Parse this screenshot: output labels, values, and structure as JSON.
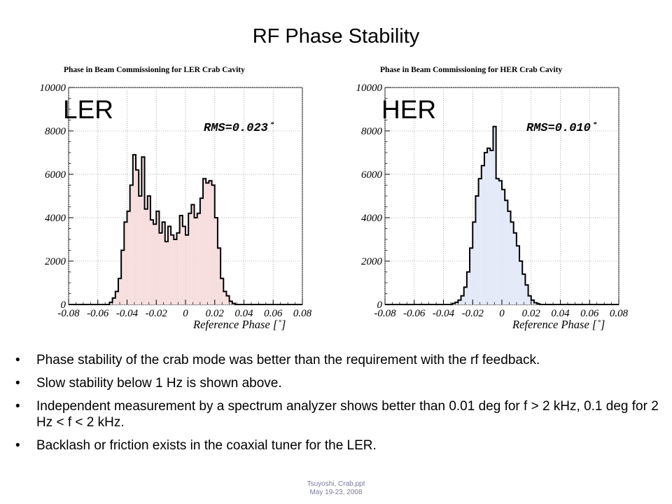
{
  "slide": {
    "title": "RF Phase Stability",
    "bullets": [
      "Phase stability of the crab mode was better than the requirement with the rf feedback.",
      "Slow stability below 1 Hz is shown above.",
      "Independent measurement by a spectrum analyzer shows better than 0.01 deg for f > 2 kHz, 0.1 deg for 2 Hz < f < 2 kHz.",
      "Backlash or friction exists in the coaxial tuner for the LER."
    ],
    "footer": [
      "Tsuyoshi, Crab.ppt",
      "May 19-23, 2008"
    ]
  },
  "chart_data": [
    {
      "id": "ler",
      "type": "histogram",
      "title": "Phase in Beam Commissioning for LER Crab Cavity",
      "overlay_label": "LER",
      "annotation": "RMS=0.023˚",
      "xlabel": "Reference Phase [˚]",
      "ylabel": "",
      "xlim": [
        -0.08,
        0.08
      ],
      "ylim": [
        0,
        10000
      ],
      "x_ticks": [
        "-0.08",
        "-0.06",
        "-0.04",
        "-0.02",
        "0",
        "0.02",
        "0.04",
        "0.06",
        "0.08"
      ],
      "y_ticks": [
        "0",
        "2000",
        "4000",
        "6000",
        "8000",
        "10000"
      ],
      "grid": true,
      "fill_color": "#f7dede",
      "line_color": "#000000",
      "bin_start": -0.08,
      "bin_width": 0.002,
      "values": [
        0,
        0,
        0,
        0,
        0,
        0,
        0,
        0,
        0,
        0,
        0,
        0,
        0,
        0,
        100,
        300,
        600,
        1200,
        2500,
        3800,
        4300,
        5500,
        6900,
        6200,
        5000,
        6800,
        4400,
        5000,
        3900,
        3700,
        4300,
        3300,
        3800,
        2900,
        3600,
        3200,
        3000,
        3300,
        4100,
        3600,
        3200,
        4200,
        4600,
        4000,
        4200,
        4900,
        5800,
        5600,
        5700,
        5500,
        4000,
        2600,
        1200,
        600,
        400,
        150,
        50,
        0,
        0,
        0,
        0,
        0,
        0,
        0,
        0,
        0,
        0,
        0,
        0,
        0,
        0,
        0,
        0,
        0,
        0,
        0,
        0,
        0,
        0,
        0
      ]
    },
    {
      "id": "her",
      "type": "histogram",
      "title": "Phase in Beam Commissioning for HER Crab Cavity",
      "overlay_label": "HER",
      "annotation": "RMS=0.010˚",
      "xlabel": "Reference Phase [˚]",
      "ylabel": "",
      "xlim": [
        -0.08,
        0.08
      ],
      "ylim": [
        0,
        10000
      ],
      "x_ticks": [
        "-0.08",
        "-0.06",
        "-0.04",
        "-0.02",
        "0",
        "0.02",
        "0.04",
        "0.06",
        "0.08"
      ],
      "y_ticks": [
        "0",
        "2000",
        "4000",
        "6000",
        "8000",
        "10000"
      ],
      "grid": true,
      "fill_color": "#e4e9f8",
      "line_color": "#000000",
      "bin_start": -0.08,
      "bin_width": 0.002,
      "values": [
        0,
        0,
        0,
        0,
        0,
        0,
        0,
        0,
        0,
        0,
        0,
        0,
        0,
        0,
        0,
        0,
        0,
        0,
        0,
        0,
        0,
        0,
        0,
        50,
        100,
        200,
        400,
        800,
        1500,
        2600,
        3800,
        5000,
        5800,
        6400,
        7000,
        7200,
        7100,
        8200,
        5800,
        5700,
        5300,
        4800,
        4300,
        3800,
        3300,
        2700,
        2000,
        1400,
        900,
        400,
        200,
        80,
        30,
        0,
        0,
        0,
        0,
        0,
        0,
        0,
        0,
        0,
        0,
        0,
        0,
        0,
        0,
        0,
        0,
        0,
        0,
        0,
        0,
        0,
        0,
        0,
        0,
        0,
        0,
        0
      ]
    }
  ]
}
